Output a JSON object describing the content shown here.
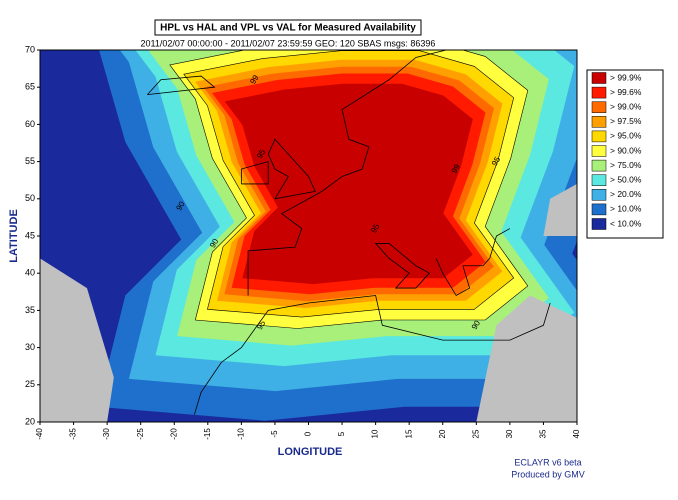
{
  "title": "HPL vs HAL and VPL vs VAL for Measured Availability",
  "subtitle": "2011/02/07 00:00:00 - 2011/02/07 23:59:59  GEO: 120  SBAS msgs: 86396",
  "x_axis": {
    "label": "LONGITUDE",
    "range": [
      -40,
      40
    ],
    "ticks": [
      -40,
      -35,
      -30,
      -25,
      -20,
      -15,
      -10,
      -5,
      0,
      5,
      10,
      15,
      20,
      25,
      30,
      35,
      40
    ]
  },
  "y_axis": {
    "label": "LATITUDE",
    "range": [
      20,
      70
    ],
    "ticks": [
      20,
      25,
      30,
      35,
      40,
      45,
      50,
      55,
      60,
      65,
      70
    ]
  },
  "legend": [
    {
      "label": "> 99.9%",
      "color": "#c80000"
    },
    {
      "label": "> 99.6%",
      "color": "#ff1a00"
    },
    {
      "label": "> 99.0%",
      "color": "#ff6a00"
    },
    {
      "label": "> 97.5%",
      "color": "#ffa000"
    },
    {
      "label": "> 95.0%",
      "color": "#ffd800"
    },
    {
      "label": "> 90.0%",
      "color": "#ffff40"
    },
    {
      "label": "> 75.0%",
      "color": "#a8f07a"
    },
    {
      "label": "> 50.0%",
      "color": "#5ae8e0"
    },
    {
      "label": "> 20.0%",
      "color": "#3fb0e6"
    },
    {
      "label": "> 10.0%",
      "color": "#1f70cc"
    },
    {
      "label": "< 10.0%",
      "color": "#1a2a9c"
    }
  ],
  "contour_labels": [
    "99",
    "99",
    "95",
    "95",
    "90",
    "90",
    "95",
    "90",
    "95"
  ],
  "credits": [
    "ECLAYR v6 beta",
    "Produced by GMV"
  ]
}
